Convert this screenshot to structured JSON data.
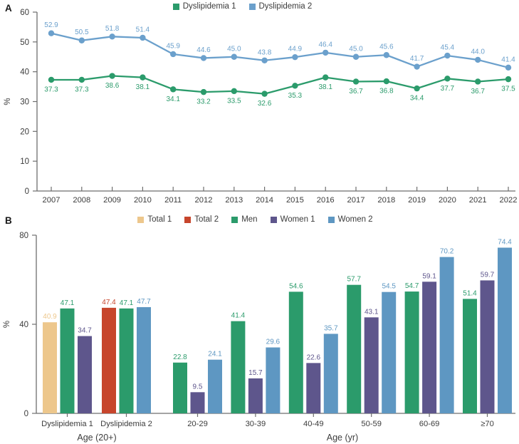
{
  "figure": {
    "panels": [
      {
        "label": "A"
      },
      {
        "label": "B"
      }
    ]
  },
  "chart_data": [
    {
      "type": "line",
      "panel": "A",
      "title": "",
      "xlabel": "",
      "ylabel": "%",
      "ylim": [
        0,
        60
      ],
      "yticks": [
        0,
        10,
        20,
        30,
        40,
        50,
        60
      ],
      "grid": false,
      "legend_position": "top-center",
      "categories": [
        "2007",
        "2008",
        "2009",
        "2010",
        "2011",
        "2012",
        "2013",
        "2014",
        "2015",
        "2016",
        "2017",
        "2018",
        "2019",
        "2020",
        "2021",
        "2022"
      ],
      "series": [
        {
          "name": "Dyslipidemia 1",
          "color": "#2B9B6B",
          "label_position": "below",
          "values": [
            37.3,
            37.3,
            38.6,
            38.1,
            34.1,
            33.2,
            33.5,
            32.6,
            35.3,
            38.1,
            36.7,
            36.8,
            34.4,
            37.7,
            36.7,
            37.5
          ],
          "labels": [
            "37.3",
            "37.3",
            "38.6",
            "38.1",
            "34.1",
            "33.2",
            "33.5",
            "32.6",
            "35.3",
            "38.1",
            "36.7",
            "36.8",
            "34.4",
            "37.7",
            "36.7",
            "37.5"
          ]
        },
        {
          "name": "Dyslipidemia 2",
          "color": "#6BA0CC",
          "label_position": "above",
          "values": [
            52.9,
            50.5,
            51.8,
            51.4,
            45.9,
            44.6,
            45.0,
            43.8,
            44.9,
            46.4,
            45.0,
            45.6,
            41.7,
            45.4,
            44.0,
            41.4
          ],
          "labels": [
            "52.9",
            "50.5",
            "51.8",
            "51.4",
            "45.9",
            "44.6",
            "45.0",
            "43.8",
            "44.9",
            "46.4",
            "45.0",
            "45.6",
            "41.7",
            "45.4",
            "44.0",
            "41.4"
          ]
        }
      ]
    },
    {
      "type": "bar",
      "panel": "B",
      "title": "",
      "ylabel": "%",
      "ylim": [
        0,
        80
      ],
      "yticks": [
        0,
        40,
        80
      ],
      "grid": false,
      "legend_position": "top-center",
      "legend": [
        "Total 1",
        "Total 2",
        "Men",
        "Women 1",
        "Women 2"
      ],
      "series_colors": {
        "Total 1": "#EDC78C",
        "Total 2": "#C7452C",
        "Men": "#2B9B6B",
        "Women 1": "#5E568C",
        "Women 2": "#5E97C2"
      },
      "sections": [
        {
          "label": "Age (20+)",
          "groups": [
            {
              "label": "Dyslipidemia 1",
              "bars": [
                {
                  "series": "Total 1",
                  "value": 40.9,
                  "label": "40.9"
                },
                {
                  "series": "Men",
                  "value": 47.1,
                  "label": "47.1"
                },
                {
                  "series": "Women 1",
                  "value": 34.7,
                  "label": "34.7"
                }
              ]
            },
            {
              "label": "Dyslipidemia 2",
              "bars": [
                {
                  "series": "Total 2",
                  "value": 47.4,
                  "label": "47.4"
                },
                {
                  "series": "Men",
                  "value": 47.1,
                  "label": "47.1"
                },
                {
                  "series": "Women 2",
                  "value": 47.7,
                  "label": "47.7"
                }
              ]
            }
          ]
        },
        {
          "label": "Age (yr)",
          "groups": [
            {
              "label": "20-29",
              "bars": [
                {
                  "series": "Men",
                  "value": 22.8,
                  "label": "22.8"
                },
                {
                  "series": "Women 1",
                  "value": 9.5,
                  "label": "9.5"
                },
                {
                  "series": "Women 2",
                  "value": 24.1,
                  "label": "24.1"
                }
              ]
            },
            {
              "label": "30-39",
              "bars": [
                {
                  "series": "Men",
                  "value": 41.4,
                  "label": "41.4"
                },
                {
                  "series": "Women 1",
                  "value": 15.7,
                  "label": "15.7"
                },
                {
                  "series": "Women 2",
                  "value": 29.6,
                  "label": "29.6"
                }
              ]
            },
            {
              "label": "40-49",
              "bars": [
                {
                  "series": "Men",
                  "value": 54.6,
                  "label": "54.6"
                },
                {
                  "series": "Women 1",
                  "value": 22.6,
                  "label": "22.6"
                },
                {
                  "series": "Women 2",
                  "value": 35.7,
                  "label": "35.7"
                }
              ]
            },
            {
              "label": "50-59",
              "bars": [
                {
                  "series": "Men",
                  "value": 57.7,
                  "label": "57.7"
                },
                {
                  "series": "Women 1",
                  "value": 43.1,
                  "label": "43.1"
                },
                {
                  "series": "Women 2",
                  "value": 54.5,
                  "label": "54.5"
                }
              ]
            },
            {
              "label": "60-69",
              "bars": [
                {
                  "series": "Men",
                  "value": 54.7,
                  "label": "54.7"
                },
                {
                  "series": "Women 1",
                  "value": 59.1,
                  "label": "59.1"
                },
                {
                  "series": "Women 2",
                  "value": 70.2,
                  "label": "70.2"
                }
              ]
            },
            {
              "label": "≥70",
              "bars": [
                {
                  "series": "Men",
                  "value": 51.4,
                  "label": "51.4"
                },
                {
                  "series": "Women 1",
                  "value": 59.7,
                  "label": "59.7"
                },
                {
                  "series": "Women 2",
                  "value": 74.4,
                  "label": "74.4"
                }
              ]
            }
          ]
        }
      ]
    }
  ]
}
